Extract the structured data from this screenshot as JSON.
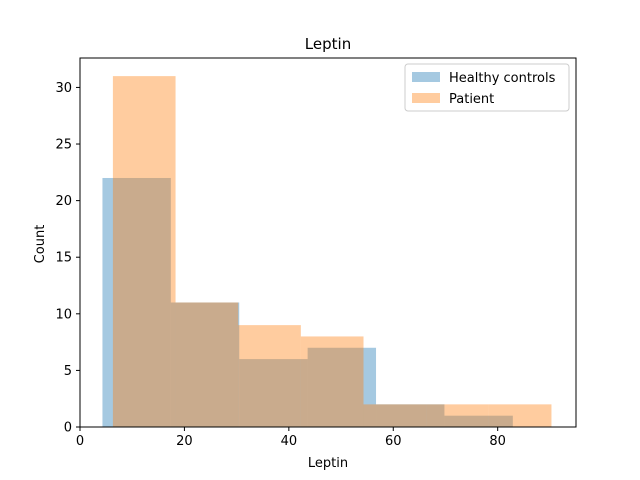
{
  "chart_data": {
    "type": "histogram",
    "title": "Leptin",
    "xlabel": "Leptin",
    "ylabel": "Count",
    "xlim": [
      0,
      95
    ],
    "ylim": [
      0,
      32.6
    ],
    "xticks": [
      0,
      20,
      40,
      60,
      80
    ],
    "yticks": [
      0,
      5,
      10,
      15,
      20,
      25,
      30
    ],
    "legend_position": "top-right",
    "series": [
      {
        "name": "Healthy controls",
        "color": "#1f77b4",
        "opacity": 0.4,
        "bin_edges": [
          4.3,
          17.4,
          30.5,
          43.6,
          56.7,
          69.8,
          82.9
        ],
        "values": [
          22,
          11,
          6,
          7,
          2,
          1
        ]
      },
      {
        "name": "Patient",
        "color": "#ff7f0e",
        "opacity": 0.4,
        "bin_edges": [
          6.3,
          18.3,
          30.3,
          42.3,
          54.3,
          66.3,
          78.3,
          90.3
        ],
        "values": [
          31,
          11,
          9,
          8,
          2,
          2,
          2
        ]
      }
    ]
  }
}
